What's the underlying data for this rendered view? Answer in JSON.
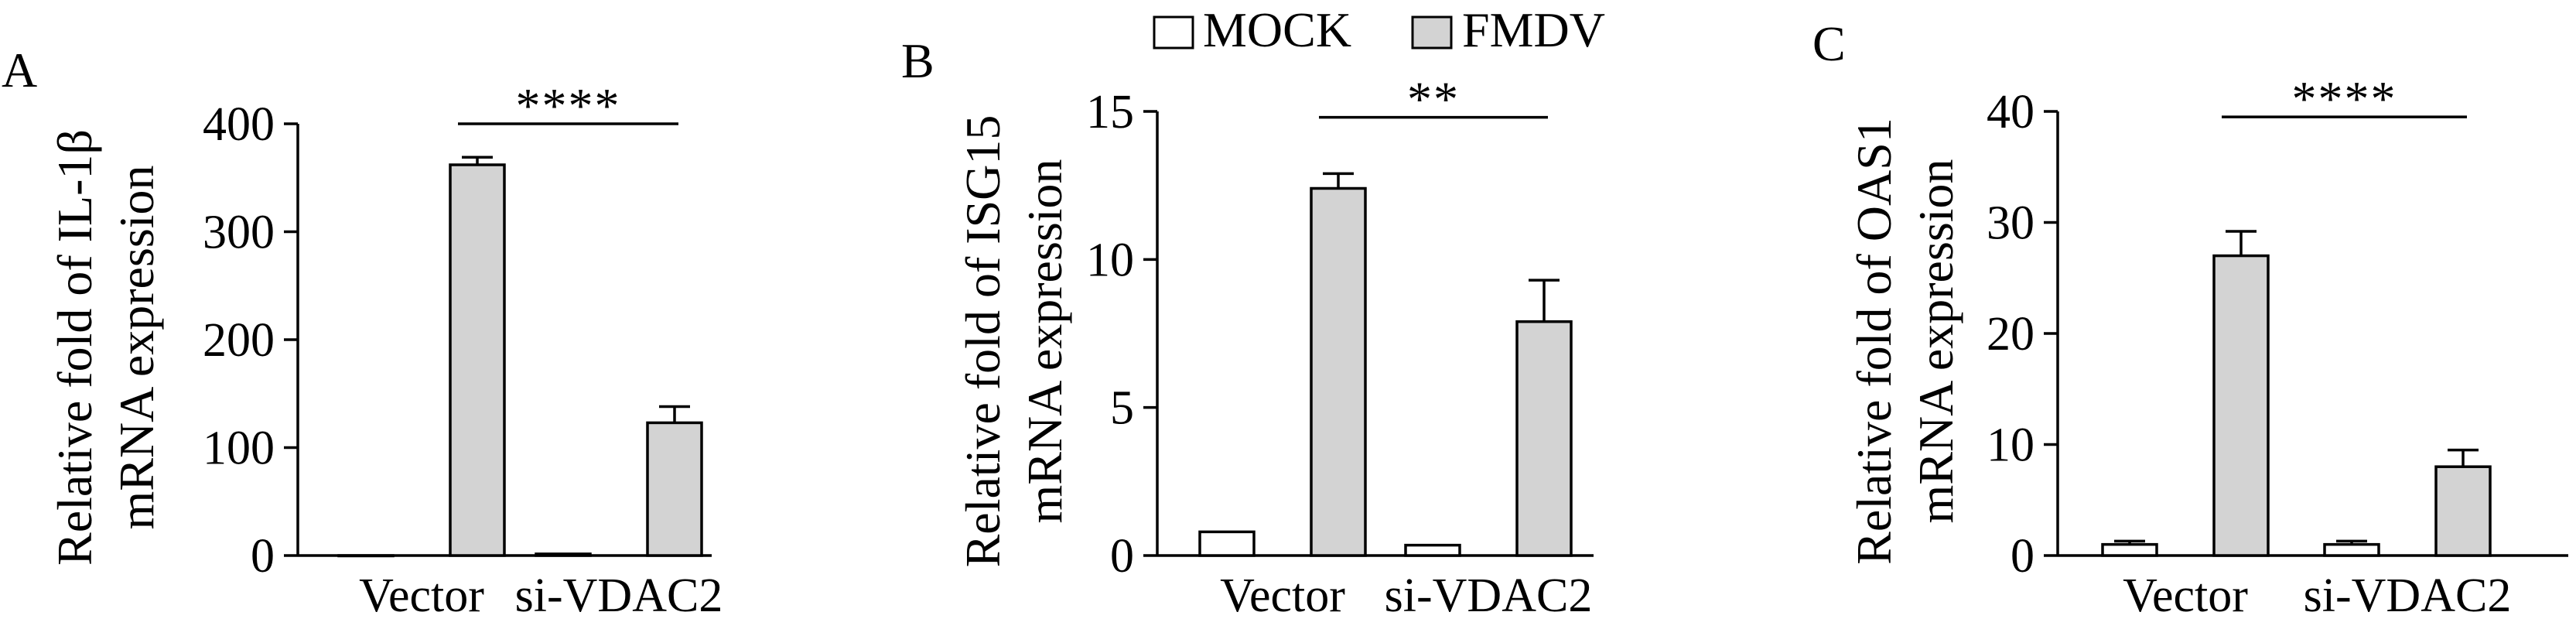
{
  "legend": {
    "items": [
      {
        "label": "MOCK",
        "color": "#ffffff"
      },
      {
        "label": "FMDV",
        "color": "#d3d3d3"
      }
    ]
  },
  "colors": {
    "stroke": "#000000",
    "mock": "#ffffff",
    "fmdv": "#d3d3d3"
  },
  "chart_data": [
    {
      "panel": "A",
      "type": "bar",
      "categories": [
        "Vector",
        "si-VDAC2"
      ],
      "series": [
        {
          "name": "MOCK",
          "values": [
            0,
            1.5
          ],
          "errors": [
            0,
            0
          ]
        },
        {
          "name": "FMDV",
          "values": [
            362,
            123
          ],
          "errors": [
            7,
            15
          ]
        }
      ],
      "ylabel_lines": [
        "Relative fold of IL-1β",
        "mRNA expression"
      ],
      "ylim": [
        0,
        400
      ],
      "yticks": [
        0,
        100,
        200,
        300,
        400
      ],
      "significance": "****",
      "sig_y": 400,
      "grid": false
    },
    {
      "panel": "B",
      "type": "bar",
      "categories": [
        "Vector",
        "si-VDAC2"
      ],
      "series": [
        {
          "name": "MOCK",
          "values": [
            0.8,
            0.35
          ],
          "errors": [
            0,
            0
          ]
        },
        {
          "name": "FMDV",
          "values": [
            12.4,
            7.9
          ],
          "errors": [
            0.5,
            1.4
          ]
        }
      ],
      "ylabel_lines": [
        "Relative fold of ISG15",
        "mRNA expression"
      ],
      "ylim": [
        0,
        15
      ],
      "yticks": [
        0,
        5,
        10,
        15
      ],
      "significance": "**",
      "sig_y": 14.8,
      "grid": false
    },
    {
      "panel": "C",
      "type": "bar",
      "categories": [
        "Vector",
        "si-VDAC2"
      ],
      "series": [
        {
          "name": "MOCK",
          "values": [
            1,
            1
          ],
          "errors": [
            0.3,
            0.3
          ]
        },
        {
          "name": "FMDV",
          "values": [
            27,
            8
          ],
          "errors": [
            2.2,
            1.5
          ]
        }
      ],
      "ylabel_lines": [
        "Relative fold of OAS1",
        "mRNA expression"
      ],
      "ylim": [
        0,
        40
      ],
      "yticks": [
        0,
        10,
        20,
        30,
        40
      ],
      "significance": "****",
      "sig_y": 39.5,
      "grid": false
    }
  ]
}
